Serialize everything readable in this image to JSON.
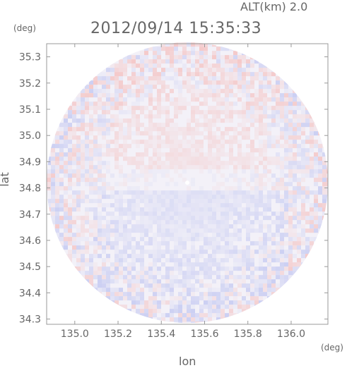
{
  "header": {
    "altitude_label": "ALT(km) 2.0",
    "timestamp": "2012/09/14 15:35:33"
  },
  "chart_data": {
    "type": "heatmap",
    "title": "2012/09/14 15:35:33",
    "xlabel": "lon",
    "ylabel": "lat",
    "x_unit": "(deg)",
    "y_unit": "(deg)",
    "xlim": [
      134.87,
      136.17
    ],
    "ylim": [
      34.28,
      35.35
    ],
    "xticks": [
      135.0,
      135.2,
      135.4,
      135.6,
      135.8,
      136.0
    ],
    "xtick_labels": [
      "135.0",
      "135.2",
      "135.4",
      "135.6",
      "135.8",
      "136.0"
    ],
    "yticks": [
      34.3,
      34.4,
      34.5,
      34.6,
      34.7,
      34.8,
      34.9,
      35.0,
      35.1,
      35.2,
      35.3
    ],
    "ytick_labels": [
      "34.3",
      "34.4",
      "34.5",
      "34.6",
      "34.7",
      "34.8",
      "34.9",
      "35.0",
      "35.1",
      "35.2",
      "35.3"
    ],
    "radar_center": {
      "lon": 135.52,
      "lat": 34.82
    },
    "radar_radius_deg_lon": 0.65,
    "colors": {
      "positive": "#f4c7c7",
      "negative": "#c9cdf2",
      "neutral": "#f3f1f8"
    },
    "grid": false
  }
}
